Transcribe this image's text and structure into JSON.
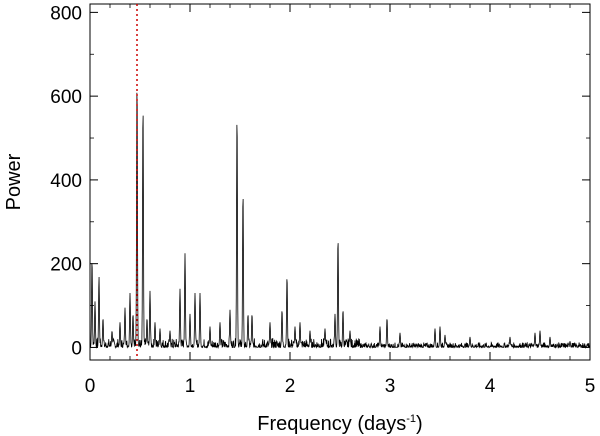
{
  "chart_data": {
    "type": "line",
    "xlabel": "Frequency (days",
    "xlabel_superscript": "-1",
    "xlabel_suffix": ")",
    "ylabel": "Power",
    "xlim": [
      0,
      5
    ],
    "ylim": [
      -30,
      820
    ],
    "x_ticks": [
      0,
      1,
      2,
      3,
      4,
      5
    ],
    "x_tick_labels": [
      "0",
      "1",
      "2",
      "3",
      "4",
      "5"
    ],
    "y_ticks": [
      0,
      200,
      400,
      600,
      800
    ],
    "y_tick_labels": [
      "0",
      "200",
      "400",
      "600",
      "800"
    ],
    "grid": false,
    "series_color": "#000000",
    "marker_line": {
      "x": 0.47,
      "color": "#cc0000",
      "style": "dotted"
    },
    "peaks": [
      {
        "x": 0.02,
        "y": 210
      },
      {
        "x": 0.05,
        "y": 110
      },
      {
        "x": 0.09,
        "y": 170
      },
      {
        "x": 0.13,
        "y": 70
      },
      {
        "x": 0.22,
        "y": 40
      },
      {
        "x": 0.3,
        "y": 60
      },
      {
        "x": 0.35,
        "y": 95
      },
      {
        "x": 0.4,
        "y": 130
      },
      {
        "x": 0.43,
        "y": 80
      },
      {
        "x": 0.47,
        "y": 635
      },
      {
        "x": 0.53,
        "y": 578
      },
      {
        "x": 0.57,
        "y": 70
      },
      {
        "x": 0.6,
        "y": 135
      },
      {
        "x": 0.65,
        "y": 60
      },
      {
        "x": 0.7,
        "y": 45
      },
      {
        "x": 0.8,
        "y": 40
      },
      {
        "x": 0.9,
        "y": 140
      },
      {
        "x": 0.95,
        "y": 225
      },
      {
        "x": 1.0,
        "y": 80
      },
      {
        "x": 1.05,
        "y": 130
      },
      {
        "x": 1.1,
        "y": 130
      },
      {
        "x": 1.2,
        "y": 50
      },
      {
        "x": 1.3,
        "y": 60
      },
      {
        "x": 1.4,
        "y": 90
      },
      {
        "x": 1.47,
        "y": 555
      },
      {
        "x": 1.53,
        "y": 370
      },
      {
        "x": 1.58,
        "y": 80
      },
      {
        "x": 1.62,
        "y": 80
      },
      {
        "x": 1.8,
        "y": 60
      },
      {
        "x": 1.92,
        "y": 90
      },
      {
        "x": 1.97,
        "y": 170
      },
      {
        "x": 2.05,
        "y": 50
      },
      {
        "x": 2.1,
        "y": 60
      },
      {
        "x": 2.2,
        "y": 40
      },
      {
        "x": 2.35,
        "y": 45
      },
      {
        "x": 2.45,
        "y": 80
      },
      {
        "x": 2.48,
        "y": 260
      },
      {
        "x": 2.53,
        "y": 90
      },
      {
        "x": 2.6,
        "y": 40
      },
      {
        "x": 2.9,
        "y": 50
      },
      {
        "x": 2.97,
        "y": 70
      },
      {
        "x": 3.1,
        "y": 35
      },
      {
        "x": 3.45,
        "y": 45
      },
      {
        "x": 3.5,
        "y": 50
      },
      {
        "x": 3.55,
        "y": 30
      },
      {
        "x": 3.8,
        "y": 25
      },
      {
        "x": 4.2,
        "y": 25
      },
      {
        "x": 4.45,
        "y": 35
      },
      {
        "x": 4.5,
        "y": 40
      },
      {
        "x": 4.6,
        "y": 25
      },
      {
        "x": 4.8,
        "y": 15
      }
    ]
  }
}
